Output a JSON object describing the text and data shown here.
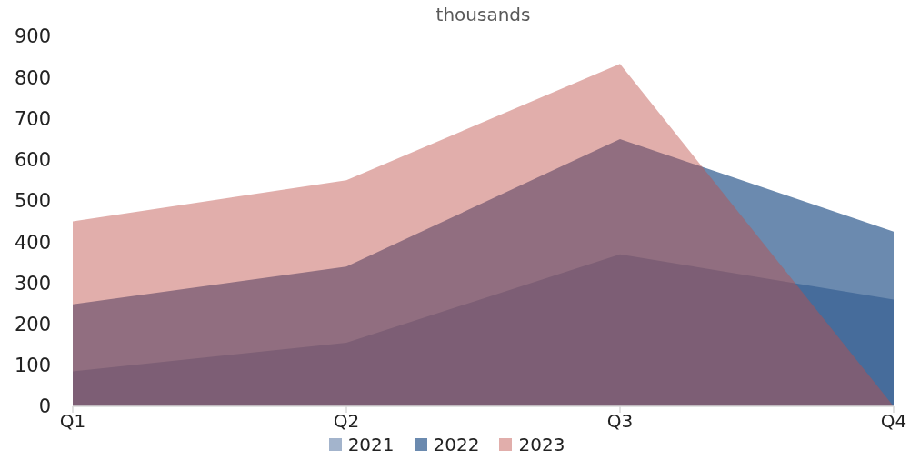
{
  "chart_data": {
    "type": "area",
    "title": "thousands",
    "categories": [
      "Q1",
      "Q2",
      "Q3",
      "Q4"
    ],
    "series": [
      {
        "name": "2021",
        "color": "#a3b4cc",
        "values": [
          85,
          155,
          370,
          260
        ]
      },
      {
        "name": "2022",
        "color": "#6b8aaf",
        "values": [
          248,
          340,
          650,
          425
        ]
      },
      {
        "name": "2023",
        "color": "#e1aeab",
        "values": [
          450,
          550,
          833,
          0
        ]
      }
    ],
    "ylim": [
      0,
      900
    ],
    "yticks": [
      0,
      100,
      200,
      300,
      400,
      500,
      600,
      700,
      800,
      900
    ],
    "legend": "bottom"
  }
}
